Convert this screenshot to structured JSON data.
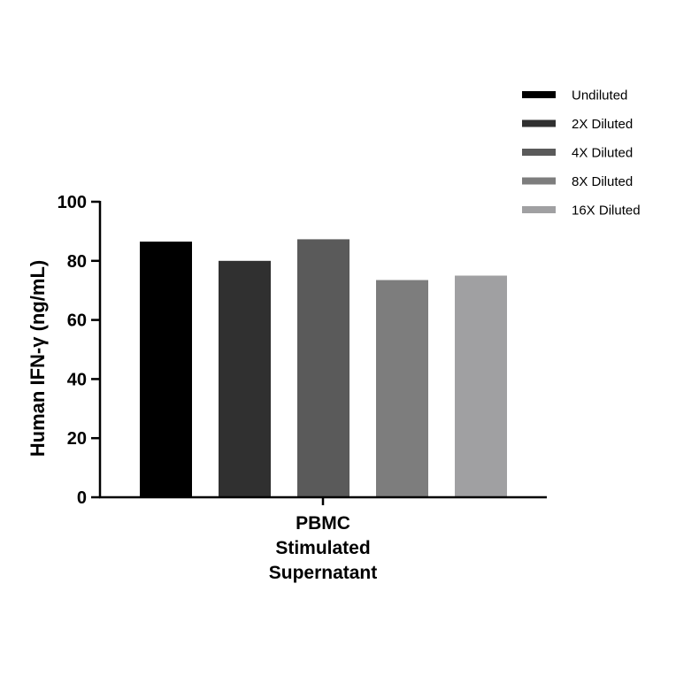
{
  "chart_data": {
    "type": "bar",
    "title": "",
    "xlabel": "",
    "ylabel": "Human IFN-γ (ng/mL)",
    "ylim": [
      0,
      100
    ],
    "yticks": [
      0,
      20,
      40,
      60,
      80,
      100
    ],
    "categories": [
      "PBMC Stimulated Supernatant"
    ],
    "category_label_lines": [
      "PBMC",
      "Stimulated",
      "Supernatant"
    ],
    "legend_position": "top-right",
    "grid": false,
    "series": [
      {
        "name": "Undiluted",
        "values": [
          86.5
        ],
        "color": "#000000"
      },
      {
        "name": "2X Diluted",
        "values": [
          80
        ],
        "color": "#303030"
      },
      {
        "name": "4X Diluted",
        "values": [
          87.3
        ],
        "color": "#5a5a5a"
      },
      {
        "name": "8X Diluted",
        "values": [
          73.5
        ],
        "color": "#7d7d7d"
      },
      {
        "name": "16X Diluted",
        "values": [
          75
        ],
        "color": "#a0a0a2"
      }
    ]
  }
}
